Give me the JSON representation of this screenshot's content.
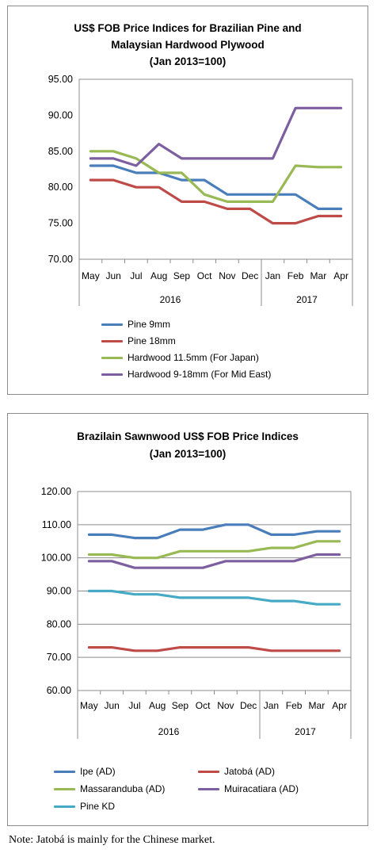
{
  "chart_data": [
    {
      "type": "line",
      "title": "US$ FOB Price Indices for Brazilian Pine and",
      "title2": "Malaysian Hardwood Plywood",
      "title3": "(Jan 2013=100)",
      "categories": [
        "May",
        "Jun",
        "Jul",
        "Aug",
        "Sep",
        "Oct",
        "Nov",
        "Dec",
        "Jan",
        "Feb",
        "Mar",
        "Apr"
      ],
      "years": [
        {
          "label": "2016"
        },
        {
          "label": "2017"
        }
      ],
      "ylim": [
        70,
        95
      ],
      "yticks": [
        "70.00",
        "75.00",
        "80.00",
        "85.00",
        "90.00",
        "95.00"
      ],
      "grid": false,
      "legend_position": "bottom-left",
      "series": [
        {
          "name": "Pine 9mm",
          "color": "#4a7ebb",
          "values": [
            83,
            83,
            82,
            82,
            81,
            81,
            79,
            79,
            79,
            79,
            77,
            77
          ]
        },
        {
          "name": "Pine 18mm",
          "color": "#be4b48",
          "values": [
            81,
            81,
            80,
            80,
            78,
            78,
            77,
            77,
            75,
            75,
            76,
            76
          ]
        },
        {
          "name": "Hardwood 11.5mm (For Japan)",
          "color": "#98b954",
          "values": [
            85,
            85,
            84,
            82,
            82,
            79,
            78,
            78,
            78,
            83,
            82.8,
            82.8
          ]
        },
        {
          "name": "Hardwood 9-18mm (For Mid East)",
          "color": "#7d5fa0",
          "values": [
            84,
            84,
            83,
            86,
            84,
            84,
            84,
            84,
            84,
            91,
            91,
            91
          ]
        }
      ]
    },
    {
      "type": "line",
      "title": "Brazilain Sawnwood US$ FOB Price Indices",
      "title2": "(Jan 2013=100)",
      "title3": "",
      "categories": [
        "May",
        "Jun",
        "Jul",
        "Aug",
        "Sep",
        "Oct",
        "Nov",
        "Dec",
        "Jan",
        "Feb",
        "Mar",
        "Apr"
      ],
      "years": [
        {
          "label": "2016"
        },
        {
          "label": "2017"
        }
      ],
      "ylim": [
        60,
        120
      ],
      "yticks": [
        "60.00",
        "70.00",
        "80.00",
        "90.00",
        "100.00",
        "110.00",
        "120.00"
      ],
      "grid": true,
      "legend_position": "bottom",
      "series": [
        {
          "name": "Ipe (AD)",
          "color": "#4a7ebb",
          "values": [
            107,
            107,
            106,
            106,
            108.5,
            108.5,
            110,
            110,
            107,
            107,
            108,
            108
          ]
        },
        {
          "name": "Jatobá (AD)",
          "color": "#be4b48",
          "values": [
            73,
            73,
            72,
            72,
            73,
            73,
            73,
            73,
            72,
            72,
            72,
            72
          ]
        },
        {
          "name": "Massaranduba (AD)",
          "color": "#98b954",
          "values": [
            101,
            101,
            100,
            100,
            102,
            102,
            102,
            102,
            103,
            103,
            105,
            105
          ]
        },
        {
          "name": "Muiracatiara (AD)",
          "color": "#7d5fa0",
          "values": [
            99,
            99,
            97,
            97,
            97,
            97,
            99,
            99,
            99,
            99,
            101,
            101
          ]
        },
        {
          "name": "Pine KD",
          "color": "#46aac5",
          "values": [
            90,
            90,
            89,
            89,
            88,
            88,
            88,
            88,
            87,
            87,
            86,
            86
          ]
        }
      ]
    }
  ],
  "note": "Note: Jatobá is mainly for the Chinese market."
}
